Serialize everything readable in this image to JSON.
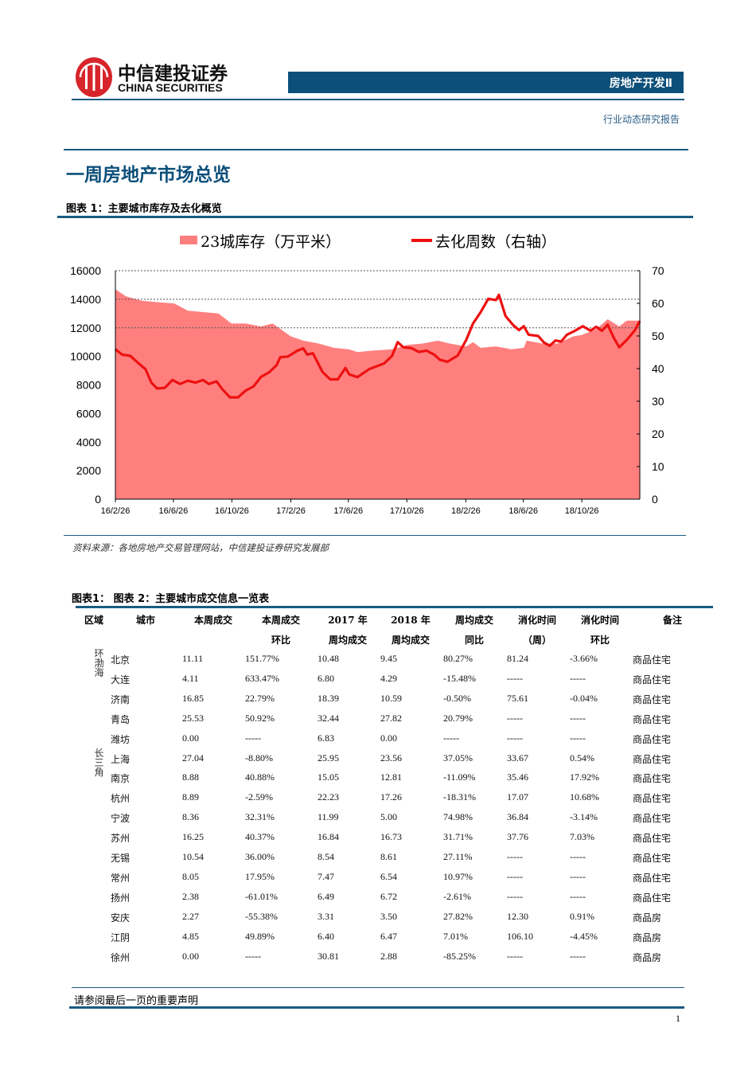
{
  "header": {
    "logo_cn": "中信建投证券",
    "logo_en": "CHINA SECURITIES",
    "sector": "房地产开发Ⅱ",
    "report_type": "行业动态研究报告"
  },
  "section_title": "一周房地产市场总览",
  "figure1": {
    "title": "图表 1：主要城市库存及去化概览",
    "source": "资料来源：各地房地产交易管理网站，中信建投证券研究发展部"
  },
  "chart_data": {
    "type": "area+line",
    "legend_position": "top",
    "grid": "dashed horizontal lines at 12000 and 14000 and 16000",
    "x_range": [
      "2016-02-26",
      "2019-02-24"
    ],
    "x_tick_labels": [
      "16/2/26",
      "16/6/26",
      "16/10/26",
      "17/2/26",
      "17/6/26",
      "17/10/26",
      "18/2/26",
      "18/6/26",
      "18/10/26"
    ],
    "x_tick_dates": [
      "2016-02-26",
      "2016-06-26",
      "2016-10-26",
      "2017-02-26",
      "2017-06-26",
      "2017-10-26",
      "2018-02-26",
      "2018-06-26",
      "2018-10-26"
    ],
    "y_left": {
      "range": [
        0,
        16000
      ],
      "ticks": [
        "0",
        "2000",
        "4000",
        "6000",
        "8000",
        "10000",
        "12000",
        "14000",
        "16000"
      ]
    },
    "y_right": {
      "range": [
        0,
        70
      ],
      "ticks": [
        "0",
        "10",
        "20",
        "30",
        "40",
        "50",
        "60",
        "70"
      ]
    },
    "series": [
      {
        "name": "23城库存（万平米）",
        "type": "area",
        "axis": "left",
        "color": "#ff7f7f",
        "points": [
          [
            "2016-02-26",
            14700
          ],
          [
            "2016-03-19",
            14200
          ],
          [
            "2016-04-21",
            13900
          ],
          [
            "2016-05-23",
            13800
          ],
          [
            "2016-06-28",
            13700
          ],
          [
            "2016-07-26",
            13200
          ],
          [
            "2016-08-27",
            13100
          ],
          [
            "2016-09-28",
            13000
          ],
          [
            "2016-10-25",
            12300
          ],
          [
            "2016-11-24",
            12300
          ],
          [
            "2016-12-26",
            12100
          ],
          [
            "2017-01-19",
            12300
          ],
          [
            "2017-02-26",
            11400
          ],
          [
            "2017-03-24",
            11100
          ],
          [
            "2017-04-25",
            10900
          ],
          [
            "2017-05-27",
            10600
          ],
          [
            "2017-06-27",
            10500
          ],
          [
            "2017-07-15",
            10300
          ],
          [
            "2017-08-16",
            10400
          ],
          [
            "2017-09-25",
            10500
          ],
          [
            "2017-10-27",
            10800
          ],
          [
            "2017-11-28",
            10900
          ],
          [
            "2017-12-30",
            11100
          ],
          [
            "2018-01-23",
            10900
          ],
          [
            "2018-02-27",
            10700
          ],
          [
            "2018-03-13",
            11000
          ],
          [
            "2018-03-29",
            10600
          ],
          [
            "2018-04-30",
            10700
          ],
          [
            "2018-06-01",
            10500
          ],
          [
            "2018-06-27",
            10600
          ],
          [
            "2018-07-03",
            11100
          ],
          [
            "2018-08-04",
            10900
          ],
          [
            "2018-09-05",
            10900
          ],
          [
            "2018-10-08",
            11400
          ],
          [
            "2018-10-26",
            11500
          ],
          [
            "2018-11-25",
            11900
          ],
          [
            "2018-12-19",
            12600
          ],
          [
            "2019-01-12",
            12100
          ],
          [
            "2019-01-28",
            12500
          ],
          [
            "2019-02-24",
            12500
          ]
        ]
      },
      {
        "name": "去化周数（右轴）",
        "type": "line",
        "axis": "right",
        "color": "#ee1111",
        "points": [
          [
            "2016-02-26",
            45.9
          ],
          [
            "2016-03-11",
            44.3
          ],
          [
            "2016-03-28",
            43.9
          ],
          [
            "2016-04-13",
            41.8
          ],
          [
            "2016-04-29",
            39.8
          ],
          [
            "2016-05-11",
            35.7
          ],
          [
            "2016-05-23",
            33.9
          ],
          [
            "2016-06-08",
            34.1
          ],
          [
            "2016-06-24",
            36.5
          ],
          [
            "2016-07-10",
            35.3
          ],
          [
            "2016-07-26",
            36.3
          ],
          [
            "2016-08-11",
            35.7
          ],
          [
            "2016-08-27",
            36.5
          ],
          [
            "2016-09-08",
            35.3
          ],
          [
            "2016-09-24",
            36.1
          ],
          [
            "2016-10-06",
            33.7
          ],
          [
            "2016-10-22",
            31.2
          ],
          [
            "2016-11-08",
            31.2
          ],
          [
            "2016-11-24",
            33.3
          ],
          [
            "2016-12-10",
            34.5
          ],
          [
            "2016-12-26",
            37.5
          ],
          [
            "2017-01-11",
            38.8
          ],
          [
            "2017-01-27",
            41.0
          ],
          [
            "2017-02-04",
            43.5
          ],
          [
            "2017-02-20",
            43.7
          ],
          [
            "2017-03-12",
            45.5
          ],
          [
            "2017-03-24",
            46.2
          ],
          [
            "2017-04-01",
            44.3
          ],
          [
            "2017-04-13",
            44.7
          ],
          [
            "2017-05-03",
            39.0
          ],
          [
            "2017-05-19",
            36.7
          ],
          [
            "2017-06-04",
            36.7
          ],
          [
            "2017-06-20",
            40.2
          ],
          [
            "2017-06-28",
            38.2
          ],
          [
            "2017-07-15",
            37.4
          ],
          [
            "2017-08-08",
            39.8
          ],
          [
            "2017-09-09",
            41.6
          ],
          [
            "2017-09-25",
            43.9
          ],
          [
            "2017-10-07",
            48.1
          ],
          [
            "2017-10-19",
            46.5
          ],
          [
            "2017-11-04",
            46.3
          ],
          [
            "2017-11-20",
            45.1
          ],
          [
            "2017-12-06",
            45.5
          ],
          [
            "2017-12-22",
            44.3
          ],
          [
            "2018-01-03",
            42.7
          ],
          [
            "2018-01-19",
            42.1
          ],
          [
            "2018-02-09",
            44.0
          ],
          [
            "2018-02-27",
            48.8
          ],
          [
            "2018-03-13",
            53.8
          ],
          [
            "2018-03-29",
            57.3
          ],
          [
            "2018-04-14",
            61.4
          ],
          [
            "2018-04-30",
            61.0
          ],
          [
            "2018-05-06",
            62.6
          ],
          [
            "2018-05-20",
            56.1
          ],
          [
            "2018-06-05",
            53.3
          ],
          [
            "2018-06-17",
            51.8
          ],
          [
            "2018-06-27",
            53.0
          ],
          [
            "2018-07-07",
            50.4
          ],
          [
            "2018-07-27",
            50.0
          ],
          [
            "2018-08-08",
            48.0
          ],
          [
            "2018-08-20",
            47.0
          ],
          [
            "2018-09-01",
            48.6
          ],
          [
            "2018-09-13",
            48.3
          ],
          [
            "2018-09-25",
            50.4
          ],
          [
            "2018-10-12",
            51.6
          ],
          [
            "2018-10-28",
            53.0
          ],
          [
            "2018-11-13",
            51.6
          ],
          [
            "2018-11-25",
            52.8
          ],
          [
            "2018-12-07",
            51.6
          ],
          [
            "2018-12-19",
            53.5
          ],
          [
            "2018-12-31",
            49.6
          ],
          [
            "2019-01-12",
            46.5
          ],
          [
            "2019-01-28",
            48.8
          ],
          [
            "2019-02-13",
            51.6
          ],
          [
            "2019-02-24",
            54.6
          ]
        ]
      }
    ]
  },
  "table2": {
    "title": "图表1：   图表 2：主要城市成交信息一览表",
    "headers": [
      [
        "区域",
        ""
      ],
      [
        "城市",
        ""
      ],
      [
        "本周成交",
        ""
      ],
      [
        "本周成交",
        "环比"
      ],
      [
        "2017 年",
        "周均成交"
      ],
      [
        "2018 年",
        "周均成交"
      ],
      [
        "周均成交",
        "同比"
      ],
      [
        "消化时间",
        "（周）"
      ],
      [
        "消化时间",
        "环比"
      ],
      [
        "备注",
        ""
      ]
    ],
    "regions": [
      {
        "label": "环渤海"
      },
      {
        "label": "长三角"
      }
    ],
    "rows": [
      [
        "北京",
        "11.11",
        "151.77%",
        "10.48",
        "9.45",
        "80.27%",
        "81.24",
        "-3.66%",
        "商品住宅"
      ],
      [
        "大连",
        "4.11",
        "633.47%",
        "6.80",
        "4.29",
        "-15.48%",
        "-----",
        "-----",
        "商品住宅"
      ],
      [
        "济南",
        "16.85",
        "22.79%",
        "18.39",
        "10.59",
        "-0.50%",
        "75.61",
        "-0.04%",
        "商品住宅"
      ],
      [
        "青岛",
        "25.53",
        "50.92%",
        "32.44",
        "27.82",
        "20.79%",
        "-----",
        "-----",
        "商品住宅"
      ],
      [
        "潍坊",
        "0.00",
        "-----",
        "6.83",
        "0.00",
        "-----",
        "-----",
        "-----",
        "商品住宅"
      ],
      [
        "上海",
        "27.04",
        "-8.80%",
        "25.95",
        "23.56",
        "37.05%",
        "33.67",
        "0.54%",
        "商品住宅"
      ],
      [
        "南京",
        "8.88",
        "40.88%",
        "15.05",
        "12.81",
        "-11.09%",
        "35.46",
        "17.92%",
        "商品住宅"
      ],
      [
        "杭州",
        "8.89",
        "-2.59%",
        "22.23",
        "17.26",
        "-18.31%",
        "17.07",
        "10.68%",
        "商品住宅"
      ],
      [
        "宁波",
        "8.36",
        "32.31%",
        "11.99",
        "5.00",
        "74.98%",
        "36.84",
        "-3.14%",
        "商品住宅"
      ],
      [
        "苏州",
        "16.25",
        "40.37%",
        "16.84",
        "16.73",
        "31.71%",
        "37.76",
        "7.03%",
        "商品住宅"
      ],
      [
        "无锡",
        "10.54",
        "36.00%",
        "8.54",
        "8.61",
        "27.11%",
        "-----",
        "-----",
        "商品住宅"
      ],
      [
        "常州",
        "8.05",
        "17.95%",
        "7.47",
        "6.54",
        "10.97%",
        "-----",
        "-----",
        "商品住宅"
      ],
      [
        "扬州",
        "2.38",
        "-61.01%",
        "6.49",
        "6.72",
        "-2.61%",
        "-----",
        "-----",
        "商品住宅"
      ],
      [
        "安庆",
        "2.27",
        "-55.38%",
        "3.31",
        "3.50",
        "27.82%",
        "12.30",
        "0.91%",
        "商品房"
      ],
      [
        "江阴",
        "4.85",
        "49.89%",
        "6.40",
        "6.47",
        "7.01%",
        "106.10",
        "-4.45%",
        "商品房"
      ],
      [
        "徐州",
        "0.00",
        "-----",
        "30.81",
        "2.88",
        "-85.25%",
        "-----",
        "-----",
        "商品房"
      ]
    ]
  },
  "footer": {
    "disclaimer": "请参阅最后一页的重要声明",
    "page_number": "1"
  }
}
